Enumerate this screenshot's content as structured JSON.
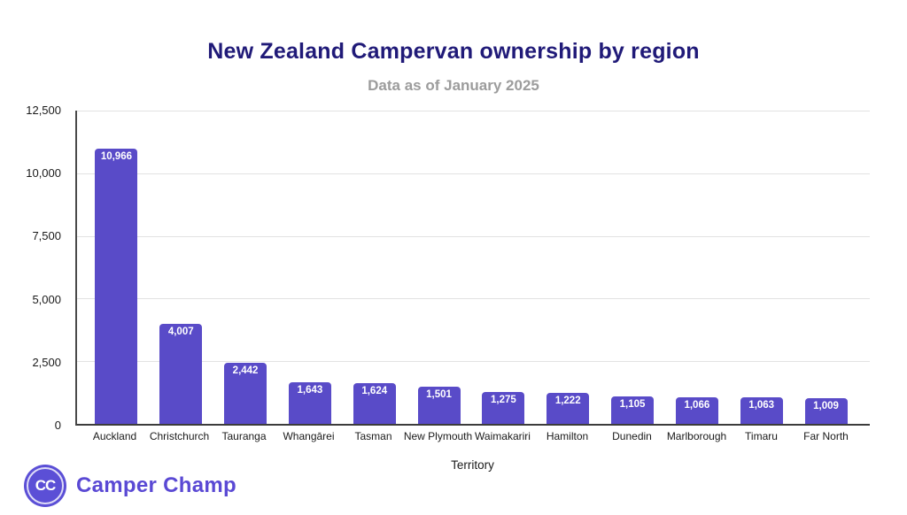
{
  "header": {
    "title": "New Zealand Campervan ownership by region",
    "subtitle": "Data as of January 2025"
  },
  "chart_data": {
    "type": "bar",
    "categories": [
      "Auckland",
      "Christchurch",
      "Tauranga",
      "Whangārei",
      "Tasman",
      "New Plymouth",
      "Waimakariri",
      "Hamilton",
      "Dunedin",
      "Marlborough",
      "Timaru",
      "Far North"
    ],
    "values": [
      10966,
      4007,
      2442,
      1643,
      1624,
      1501,
      1275,
      1222,
      1105,
      1066,
      1063,
      1009
    ],
    "value_labels": [
      "10,966",
      "4,007",
      "2,442",
      "1,643",
      "1,624",
      "1,501",
      "1,275",
      "1,222",
      "1,105",
      "1,066",
      "1,063",
      "1,009"
    ],
    "title": "New Zealand Campervan ownership by region",
    "subtitle": "Data as of January 2025",
    "xlabel": "Territory",
    "ylabel": "",
    "ylim": [
      0,
      12500
    ],
    "yticks": [
      0,
      2500,
      5000,
      7500,
      10000,
      12500
    ],
    "ytick_labels": [
      "0",
      "2,500",
      "5,000",
      "7,500",
      "10,000",
      "12,500"
    ],
    "grid": true,
    "legend": false,
    "bar_value_labels_inside_top": true
  },
  "colors": {
    "bar": "#594BC8",
    "bar_label": "#FFFFFF",
    "title": "#201A78",
    "subtitle": "#9C9C9C",
    "gridline": "#E2E2E2",
    "axis": "#3C3C3C",
    "brand": "#5A49D4",
    "logo_circle": "#5B4FD6"
  },
  "footer": {
    "logo_monogram": "CC",
    "brand_name": "Camper Champ"
  }
}
